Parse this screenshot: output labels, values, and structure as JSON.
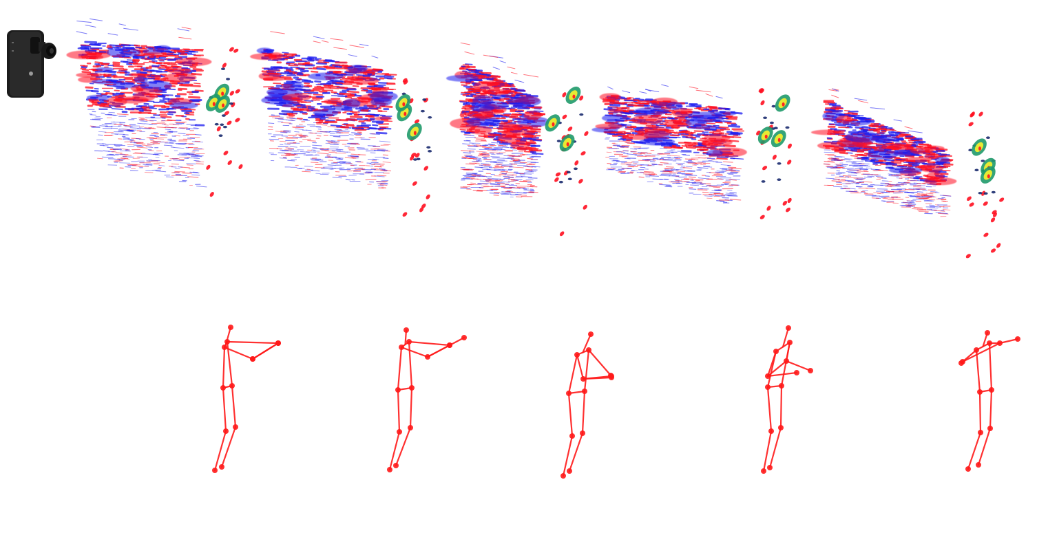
{
  "figure": {
    "camera": {
      "icon": "event-camera-icon"
    },
    "colors": {
      "positive_events": "#ff1020",
      "negative_events": "#1c1cf0",
      "skeleton": "#ff1a1a",
      "heatmap_low": "#1a2a6e",
      "heatmap_mid": "#1f9a6a",
      "heatmap_high": "#f2ee30"
    },
    "frame_count": 5,
    "skeleton_joint_count": 13
  }
}
